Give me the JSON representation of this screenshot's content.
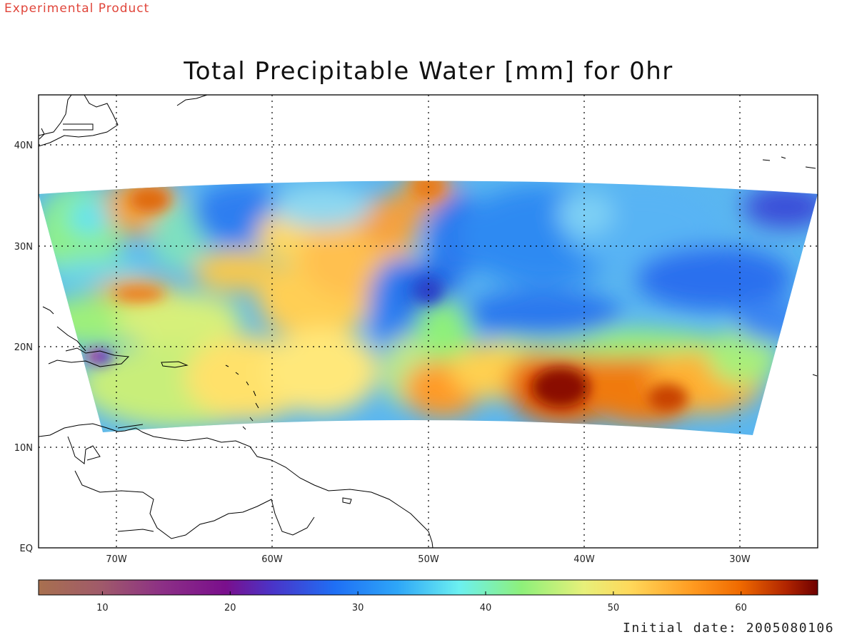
{
  "header": {
    "experimental_label": "Experimental Product",
    "title": "Total Precipitable Water [mm] for 0hr"
  },
  "map": {
    "lat_labels": [
      "40N",
      "30N",
      "20N",
      "10N",
      "EQ"
    ],
    "lon_labels": [
      "70W",
      "60W",
      "50W",
      "40W",
      "30W"
    ],
    "lon_range": [
      "75W",
      "25W"
    ],
    "lat_range": [
      "EQ",
      "45N"
    ],
    "grid": "dotted"
  },
  "colorbar": {
    "tick_labels": [
      "10",
      "20",
      "30",
      "40",
      "50",
      "60"
    ],
    "range": [
      5,
      66
    ],
    "colors": {
      "low": "#a0644a",
      "purple": "#7a0f8c",
      "blue": "#1a6ff5",
      "cyan": "#6cf0f0",
      "green": "#8ef07a",
      "yellow": "#ffe56a",
      "orange": "#ff7f00",
      "high": "#7a0000"
    }
  },
  "footer": {
    "initial_date": "Initial date: 2005080106"
  },
  "chart_data": {
    "type": "heatmap",
    "title": "Total Precipitable Water [mm] for 0hr",
    "xlabel": "",
    "ylabel": "",
    "x_ticks": [
      "70W",
      "60W",
      "50W",
      "40W",
      "30W"
    ],
    "y_ticks": [
      "EQ",
      "10N",
      "20N",
      "30N",
      "40N"
    ],
    "colorbar_ticks": [
      10,
      20,
      30,
      40,
      50,
      60
    ],
    "value_range": [
      5,
      66
    ],
    "grid": true
  }
}
